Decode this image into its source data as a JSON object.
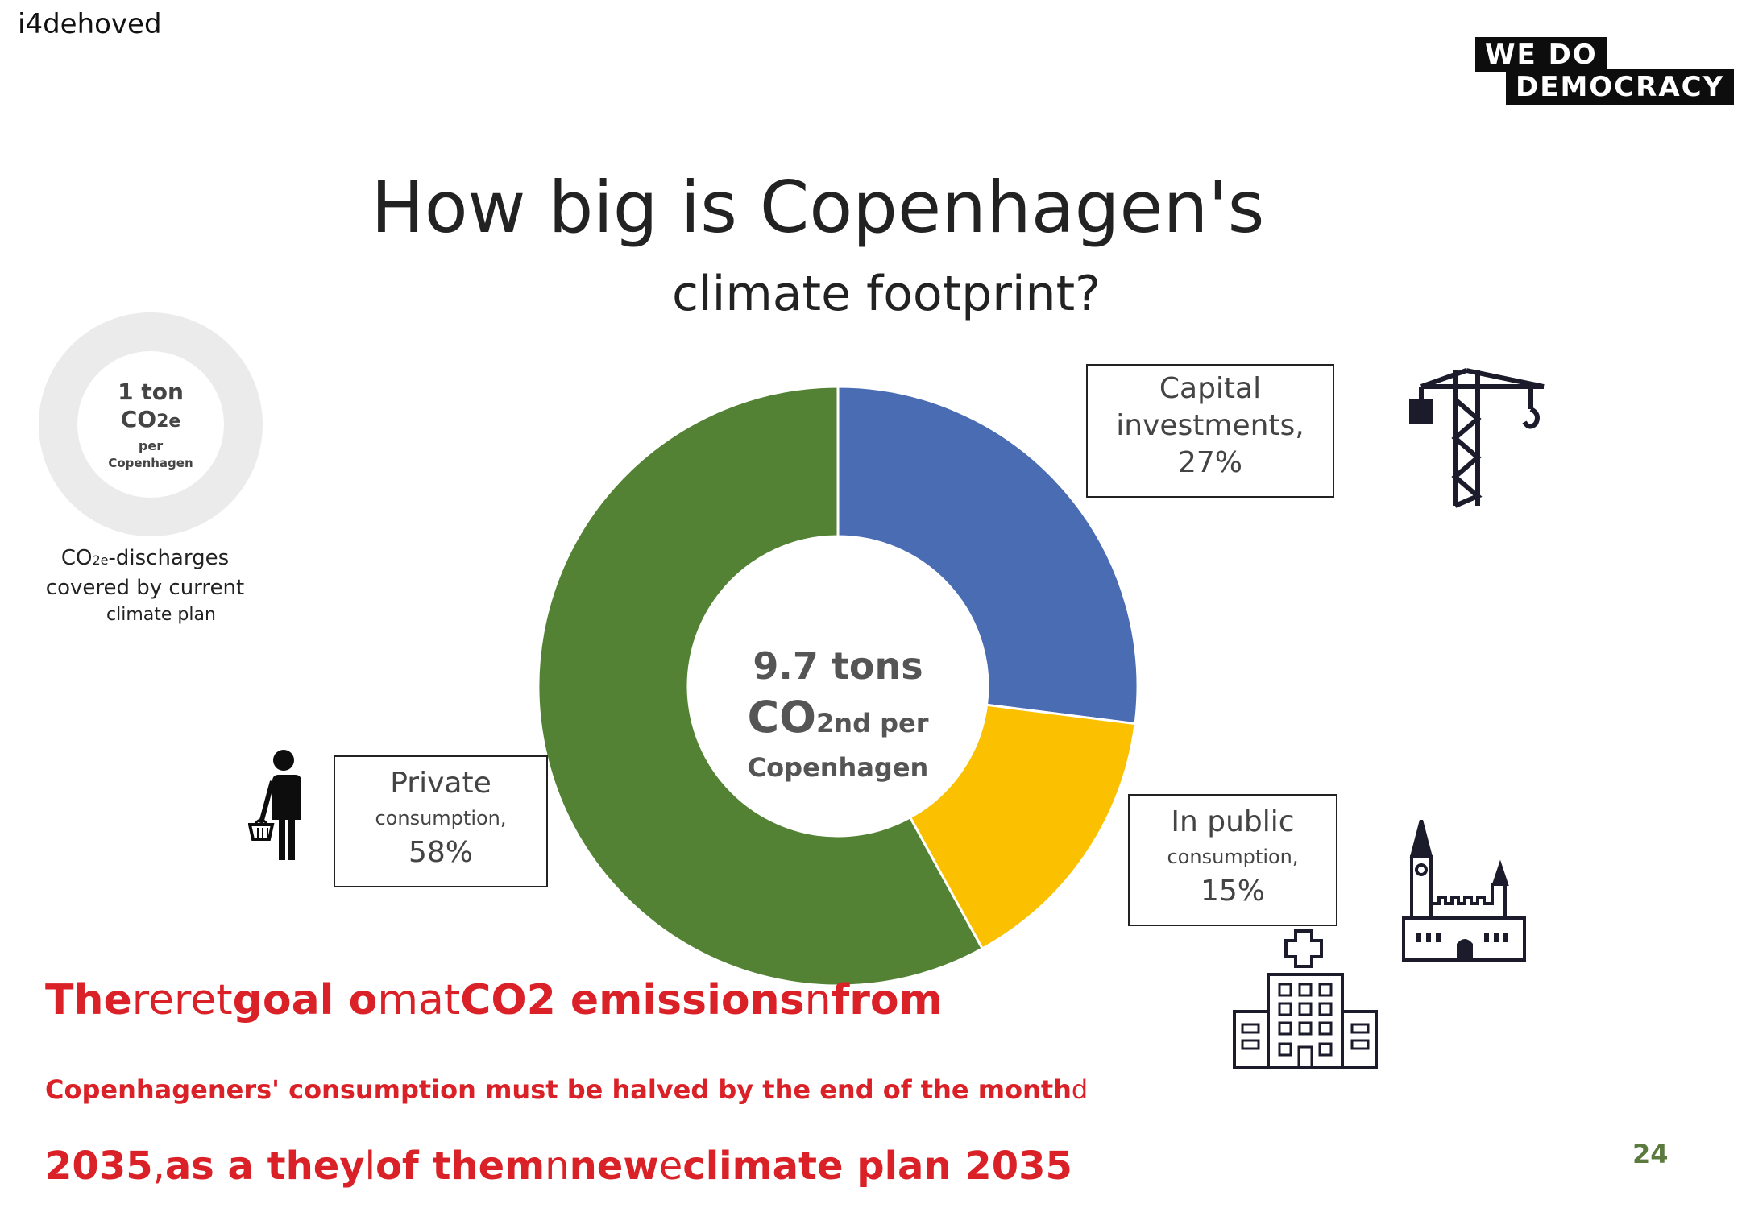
{
  "header": {
    "label": "i4dehoved"
  },
  "logo": {
    "line1": "WE DO",
    "line2": "DEMOCRACY"
  },
  "title": {
    "line1": "How big is Copenhagen's",
    "line2": "climate footprint?"
  },
  "small_ring": {
    "line1": "1 ton",
    "line2_main": "CO",
    "line2_sub": "2e",
    "line3": "per",
    "line4": "Copenhagen",
    "caption_main": "CO",
    "caption_sub": "2e",
    "caption_rest": "-discharges",
    "caption_line2": "covered by current",
    "caption_line3": "climate plan"
  },
  "center": {
    "line1": "9.7 tons",
    "line2_main": "CO",
    "line2_small": "2nd per",
    "line3": "Copenhagen"
  },
  "labels": {
    "capital": {
      "line1": "Capital",
      "line2": "investments,",
      "line3": "27%"
    },
    "private": {
      "line1": "Private",
      "line2": "consumption,",
      "line3": "58%"
    },
    "public": {
      "line1": "In public",
      "line2": "consumption,",
      "line3": "15%"
    }
  },
  "footer": {
    "red1": [
      {
        "t": "The",
        "bold": true
      },
      {
        "t": "reret",
        "bold": false
      },
      {
        "t": "goal o",
        "bold": true
      },
      {
        "t": "mat",
        "bold": false
      },
      {
        "t": "CO2 emissions",
        "bold": true
      },
      {
        "t": "n",
        "bold": false
      },
      {
        "t": "from",
        "bold": true
      }
    ],
    "red2": [
      {
        "t": "Copenhageners' consumption must be halved by the end of the month",
        "bold": true
      },
      {
        "t": "d",
        "bold": false
      }
    ],
    "red3": [
      {
        "t": "2035",
        "bold": true
      },
      {
        "t": ",",
        "bold": false
      },
      {
        "t": "as a they",
        "bold": true
      },
      {
        "t": "l",
        "bold": false
      },
      {
        "t": "of them",
        "bold": true
      },
      {
        "t": "n",
        "bold": false
      },
      {
        "t": "new",
        "bold": true
      },
      {
        "t": "e",
        "bold": false
      },
      {
        "t": "climate plan 2035",
        "bold": true
      }
    ]
  },
  "page_number": "24",
  "icons": [
    "crane-icon",
    "shopper-icon",
    "church-icon",
    "hospital-icon"
  ],
  "colors": {
    "capital": "#4a6cb3",
    "public": "#fbc100",
    "private": "#548235",
    "footer_red": "#d92127",
    "page_number": "#5a7a3e"
  },
  "chart_data": {
    "type": "pie",
    "variant": "donut",
    "categories": [
      "Capital investments",
      "In public consumption",
      "Private consumption"
    ],
    "values": [
      27,
      15,
      58
    ],
    "unit": "%",
    "colors": [
      "#4a6cb3",
      "#fbc100",
      "#548235"
    ]
  }
}
